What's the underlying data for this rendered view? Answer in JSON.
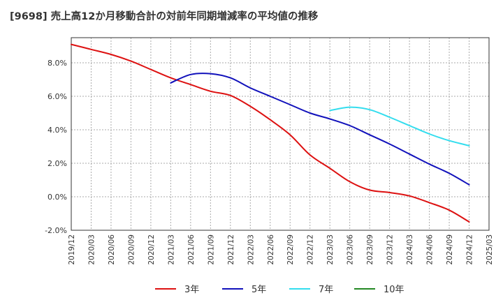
{
  "chart_data": {
    "type": "line",
    "title": "[9698]  売上高12か月移動合計の対前年同期増減率の平均値の推移",
    "xlabel": "",
    "ylabel": "",
    "ylim": [
      -2.0,
      9.5
    ],
    "yticks": [
      "-2.0%",
      "0.0%",
      "2.0%",
      "4.0%",
      "6.0%",
      "8.0%"
    ],
    "x_categories": [
      "2019/12",
      "2020/03",
      "2020/06",
      "2020/09",
      "2020/12",
      "2021/03",
      "2021/06",
      "2021/09",
      "2021/12",
      "2022/03",
      "2022/06",
      "2022/09",
      "2022/12",
      "2023/03",
      "2023/06",
      "2023/09",
      "2023/12",
      "2024/03",
      "2024/06",
      "2024/09",
      "2024/12",
      "2025/03"
    ],
    "grid": true,
    "legend_position": "bottom",
    "colors": {
      "3年": "#dd1111",
      "5年": "#1111bb",
      "7年": "#33ddee",
      "10年": "#228822"
    },
    "series": [
      {
        "name": "3年",
        "color": "#dd1111",
        "values": [
          9.1,
          8.8,
          8.5,
          8.1,
          7.6,
          7.1,
          6.7,
          6.3,
          6.05,
          5.4,
          4.6,
          3.7,
          2.5,
          1.7,
          0.9,
          0.4,
          0.25,
          0.05,
          -0.35,
          -0.8,
          -1.5,
          null
        ]
      },
      {
        "name": "5年",
        "color": "#1111bb",
        "values": [
          null,
          null,
          null,
          null,
          null,
          6.8,
          7.3,
          7.35,
          7.1,
          6.5,
          6.0,
          5.5,
          5.0,
          4.65,
          4.25,
          3.7,
          3.15,
          2.55,
          1.95,
          1.4,
          0.72,
          null
        ]
      },
      {
        "name": "7年",
        "color": "#33ddee",
        "values": [
          null,
          null,
          null,
          null,
          null,
          null,
          null,
          null,
          null,
          null,
          null,
          null,
          null,
          5.15,
          5.35,
          5.2,
          4.75,
          4.25,
          3.75,
          3.35,
          3.05,
          null
        ]
      },
      {
        "name": "10年",
        "color": "#228822",
        "values": [
          null,
          null,
          null,
          null,
          null,
          null,
          null,
          null,
          null,
          null,
          null,
          null,
          null,
          null,
          null,
          null,
          null,
          null,
          null,
          null,
          null,
          null
        ]
      }
    ]
  }
}
